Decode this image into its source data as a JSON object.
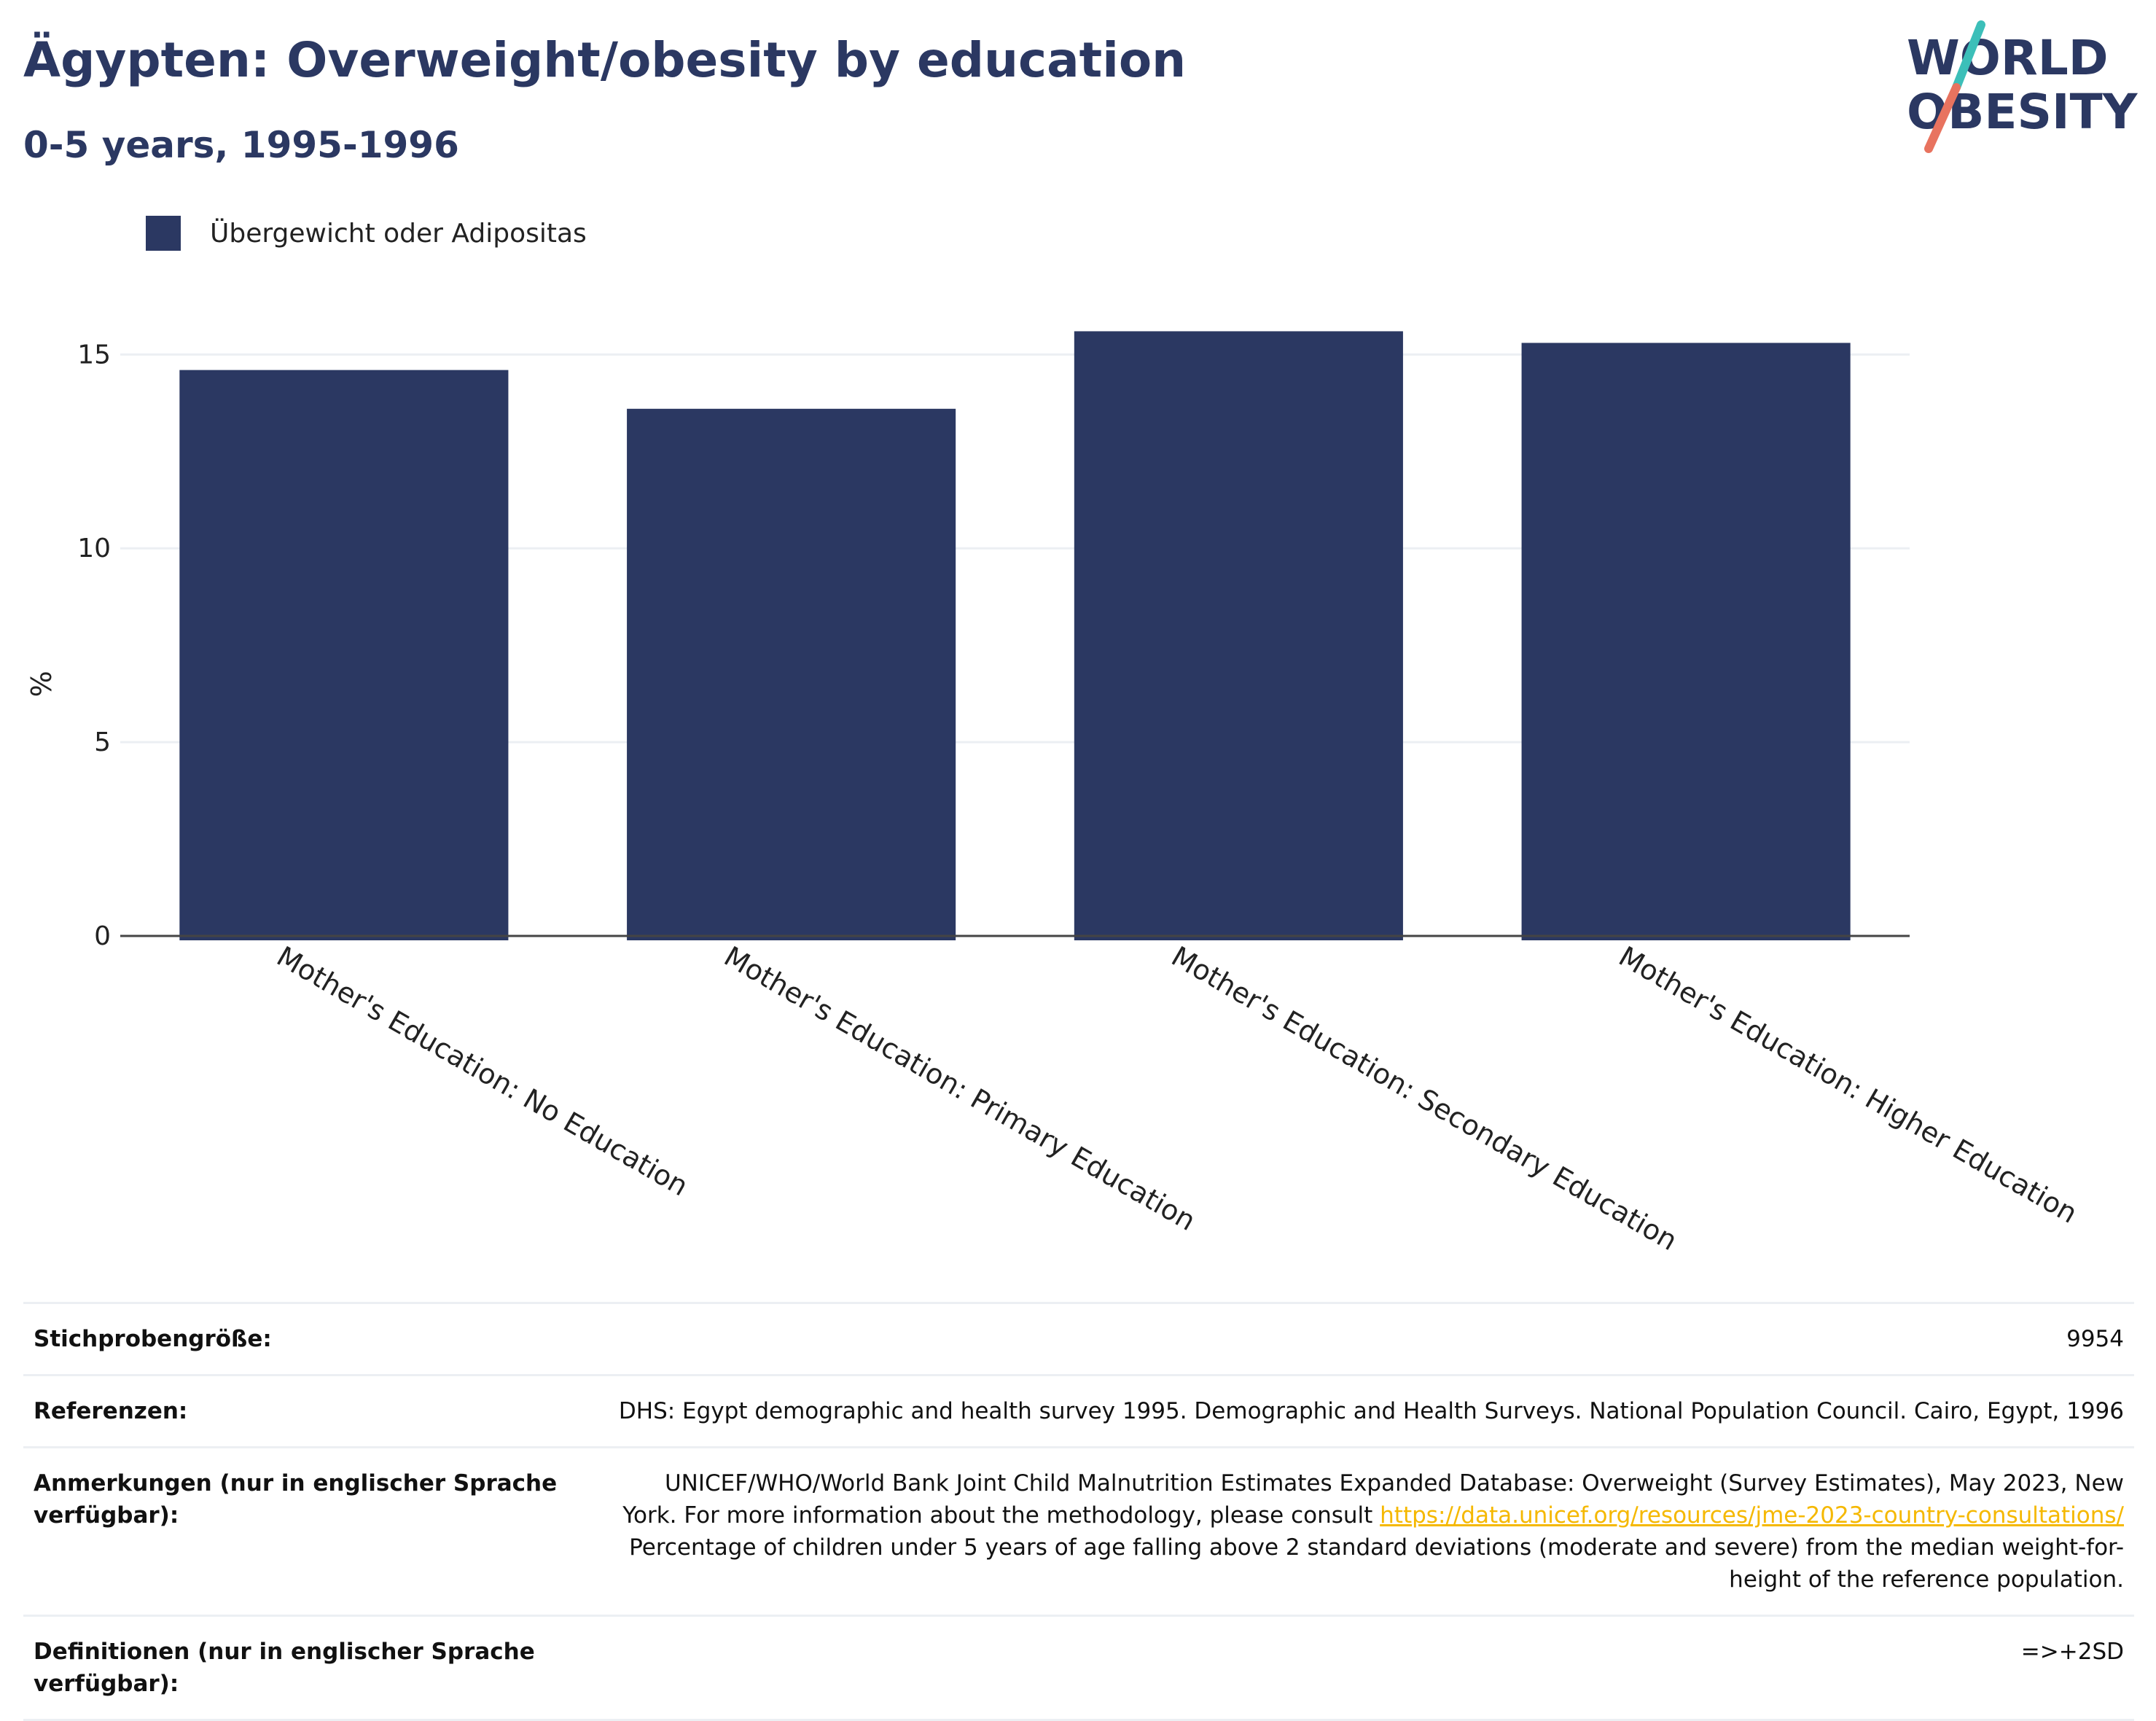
{
  "header": {
    "title": "Ägypten: Overweight/obesity by education",
    "subtitle": "0-5 years, 1995-1996"
  },
  "logo": {
    "line1": "WORLD",
    "line2": "OBESITY",
    "colors": {
      "text": "#2b3862",
      "slash_teal": "#3cbfb9",
      "slash_coral": "#e8735f"
    }
  },
  "colors": {
    "bar": "#2b3862",
    "grid": "#eceff3",
    "axis": "#444444"
  },
  "chart_data": {
    "type": "bar",
    "categories": [
      "Mother's Education: No Education",
      "Mother's Education: Primary Education",
      "Mother's Education: Secondary Education",
      "Mother's Education: Higher Education"
    ],
    "series": [
      {
        "name": "Übergewicht oder Adipositas",
        "values": [
          14.6,
          13.6,
          15.6,
          15.3
        ]
      }
    ],
    "ylabel": "%",
    "ylim": [
      0,
      17
    ],
    "yticks": [
      0,
      5,
      10,
      15
    ],
    "grid": true,
    "legend": "top-left"
  },
  "table": {
    "sample_label": "Stichprobengröße:",
    "sample_value": "9954",
    "references_label": "Referenzen:",
    "references_value": "DHS: Egypt demographic and health survey 1995. Demographic and Health Surveys. National Population Council. Cairo, Egypt, 1996",
    "notes_label": "Anmerkungen (nur in englischer Sprache verfügbar):",
    "notes_text_1": "UNICEF/WHO/World Bank Joint Child Malnutrition Estimates Expanded Database: Overweight (Survey Estimates), May 2023, New York. For more information about the methodology, please consult",
    "notes_link": "https://data.unicef.org/resources/jme-2023-country-consultations/",
    "notes_text_2": "Percentage of children under 5 years of age falling above 2 standard deviations (moderate and severe) from the median weight-for-height of the reference population.",
    "definitions_label": "Definitionen (nur in englischer Sprache verfügbar):",
    "definitions_value": "=>+2SD"
  }
}
